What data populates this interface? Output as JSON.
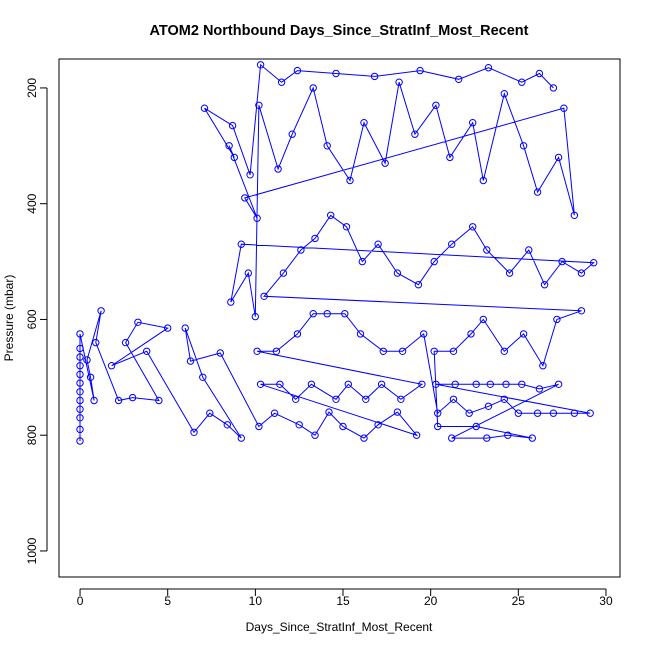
{
  "chart_data": {
    "type": "scatter",
    "title": "ATOM2 Northbound Days_Since_StratInf_Most_Recent",
    "xlabel": "Days_Since_StratInf_Most_Recent",
    "ylabel": "Pressure (mbar)",
    "xlim": [
      -1.2,
      30.8
    ],
    "ylim": [
      1045,
      150
    ],
    "y_reversed": true,
    "xticks": [
      0,
      5,
      10,
      15,
      20,
      25,
      30
    ],
    "xtick_labels": [
      "0",
      "5",
      "10",
      "15",
      "20",
      "25",
      "30"
    ],
    "yticks": [
      200,
      400,
      600,
      800,
      1000
    ],
    "ytick_labels": [
      "200",
      "400",
      "600",
      "800",
      "1000"
    ],
    "series_color": "#0000ff",
    "marker": "open-circle",
    "connected": true,
    "grid": false,
    "series": [
      {
        "name": "",
        "points": [
          [
            0,
            810
          ],
          [
            0,
            790
          ],
          [
            0,
            770
          ],
          [
            0,
            755
          ],
          [
            0,
            740
          ],
          [
            0,
            725
          ],
          [
            0,
            710
          ],
          [
            0,
            695
          ],
          [
            0,
            680
          ],
          [
            0,
            665
          ],
          [
            0,
            650
          ],
          [
            0,
            625
          ],
          [
            0.8,
            740
          ],
          [
            0.6,
            700
          ],
          [
            0.4,
            670
          ],
          [
            1.2,
            585
          ],
          [
            0.9,
            640
          ],
          [
            2.2,
            740
          ],
          [
            3.0,
            735
          ],
          [
            4.5,
            740
          ],
          [
            2.6,
            640
          ],
          [
            3.3,
            605
          ],
          [
            5.0,
            615
          ],
          [
            1.8,
            680
          ],
          [
            3.8,
            655
          ],
          [
            6.5,
            795
          ],
          [
            7.4,
            762
          ],
          [
            8.4,
            782
          ],
          [
            9.2,
            805
          ],
          [
            7.0,
            700
          ],
          [
            6.0,
            615
          ],
          [
            6.3,
            672
          ],
          [
            8.0,
            658
          ],
          [
            10.2,
            785
          ],
          [
            11.1,
            762
          ],
          [
            12.5,
            782
          ],
          [
            13.4,
            800
          ],
          [
            14.2,
            760
          ],
          [
            15.0,
            785
          ],
          [
            16.2,
            805
          ],
          [
            17.0,
            782
          ],
          [
            18.1,
            760
          ],
          [
            19.2,
            800
          ],
          [
            10.3,
            712
          ],
          [
            11.4,
            712
          ],
          [
            12.3,
            738
          ],
          [
            13.2,
            712
          ],
          [
            14.6,
            738
          ],
          [
            15.3,
            712
          ],
          [
            16.3,
            738
          ],
          [
            17.2,
            712
          ],
          [
            18.3,
            738
          ],
          [
            19.5,
            712
          ],
          [
            10.1,
            655
          ],
          [
            11.2,
            655
          ],
          [
            12.4,
            625
          ],
          [
            13.3,
            590
          ],
          [
            14.1,
            590
          ],
          [
            15.1,
            590
          ],
          [
            16.0,
            625
          ],
          [
            17.3,
            655
          ],
          [
            18.4,
            655
          ],
          [
            19.6,
            625
          ],
          [
            20.4,
            762
          ],
          [
            21.3,
            738
          ],
          [
            22.2,
            762
          ],
          [
            23.3,
            750
          ],
          [
            24.2,
            738
          ],
          [
            25.0,
            762
          ],
          [
            26.1,
            762
          ],
          [
            27.0,
            762
          ],
          [
            28.2,
            762
          ],
          [
            29.1,
            762
          ],
          [
            20.3,
            712
          ],
          [
            21.4,
            712
          ],
          [
            22.6,
            712
          ],
          [
            23.4,
            712
          ],
          [
            24.3,
            712
          ],
          [
            25.2,
            712
          ],
          [
            26.2,
            720
          ],
          [
            27.3,
            712
          ],
          [
            21.2,
            805
          ],
          [
            23.2,
            805
          ],
          [
            24.4,
            800
          ],
          [
            25.8,
            805
          ],
          [
            22.6,
            785
          ],
          [
            20.4,
            785
          ],
          [
            20.2,
            655
          ],
          [
            21.3,
            655
          ],
          [
            22.3,
            625
          ],
          [
            23.0,
            600
          ],
          [
            24.2,
            655
          ],
          [
            25.3,
            625
          ],
          [
            26.4,
            680
          ],
          [
            27.2,
            600
          ],
          [
            28.6,
            585
          ],
          [
            10.5,
            560
          ],
          [
            11.6,
            520
          ],
          [
            12.6,
            480
          ],
          [
            13.4,
            460
          ],
          [
            14.3,
            420
          ],
          [
            15.2,
            440
          ],
          [
            16.1,
            500
          ],
          [
            17.0,
            470
          ],
          [
            18.1,
            520
          ],
          [
            19.3,
            540
          ],
          [
            20.2,
            500
          ],
          [
            21.2,
            470
          ],
          [
            22.4,
            440
          ],
          [
            23.2,
            480
          ],
          [
            24.5,
            520
          ],
          [
            25.6,
            480
          ],
          [
            26.5,
            540
          ],
          [
            27.5,
            500
          ],
          [
            28.6,
            520
          ],
          [
            29.3,
            502
          ],
          [
            9.2,
            470
          ],
          [
            8.6,
            570
          ],
          [
            9.6,
            520
          ],
          [
            10.0,
            595
          ],
          [
            10.2,
            230
          ],
          [
            11.3,
            340
          ],
          [
            12.1,
            280
          ],
          [
            13.3,
            200
          ],
          [
            14.1,
            300
          ],
          [
            15.4,
            360
          ],
          [
            16.2,
            260
          ],
          [
            17.4,
            330
          ],
          [
            18.2,
            190
          ],
          [
            19.1,
            280
          ],
          [
            20.3,
            230
          ],
          [
            21.1,
            320
          ],
          [
            22.4,
            260
          ],
          [
            23.0,
            360
          ],
          [
            24.2,
            210
          ],
          [
            25.3,
            300
          ],
          [
            26.1,
            380
          ],
          [
            27.3,
            320
          ],
          [
            28.2,
            420
          ],
          [
            27.6,
            235
          ],
          [
            9.4,
            390
          ],
          [
            10.1,
            425
          ],
          [
            8.5,
            300
          ],
          [
            8.8,
            320
          ],
          [
            7.1,
            235
          ],
          [
            8.7,
            265
          ],
          [
            9.7,
            350
          ],
          [
            10.3,
            160
          ],
          [
            11.5,
            190
          ],
          [
            12.4,
            170
          ],
          [
            14.6,
            175
          ],
          [
            16.8,
            180
          ],
          [
            19.4,
            170
          ],
          [
            21.6,
            185
          ],
          [
            23.3,
            165
          ],
          [
            25.2,
            190
          ],
          [
            26.2,
            175
          ],
          [
            27.0,
            200
          ]
        ]
      }
    ]
  }
}
